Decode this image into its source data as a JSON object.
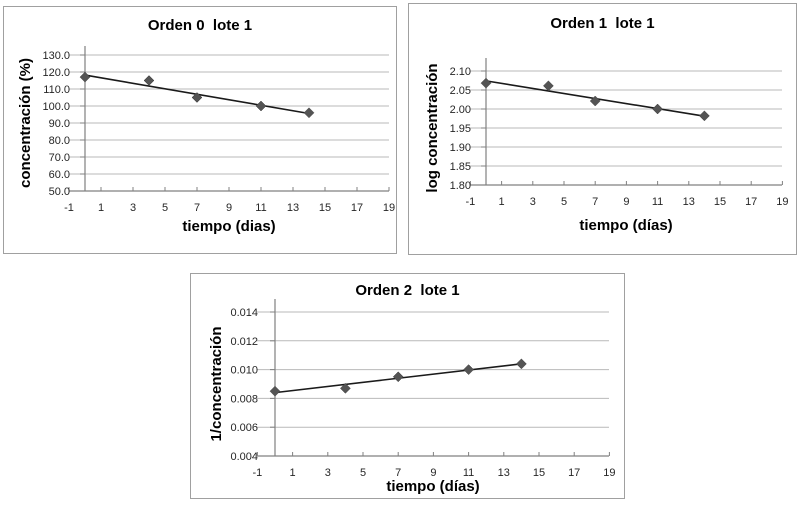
{
  "page": {
    "background": "#ffffff",
    "description_colors": {
      "marker": "#545454",
      "trend_line": "#1a1a1a",
      "gridline": "#b9b9b9",
      "axis_line": "#808080",
      "tick_label": "#262626",
      "chart_border": "#a0a0a0",
      "title_text": "#000000"
    }
  },
  "chart_data": [
    {
      "type": "scatter",
      "title": "Orden 0  lote 1",
      "xlabel": "tiempo (dias)",
      "ylabel": "concentración (%)",
      "x": [
        0,
        4,
        7,
        11,
        14
      ],
      "y": [
        117,
        115,
        105,
        100,
        96
      ],
      "trendline": {
        "x1": 0,
        "y1": 118.2,
        "x2": 14,
        "y2": 95.6
      },
      "xticks": [
        -1,
        1,
        3,
        5,
        7,
        9,
        11,
        13,
        15,
        17,
        19
      ],
      "ytick_values": [
        130,
        120,
        110,
        100,
        90,
        80,
        70,
        60,
        50
      ],
      "ytick_labels": [
        "130.0",
        "120.0",
        "110.0",
        "100.0",
        "90.0",
        "80.0",
        "70.0",
        "60.0",
        "50.0"
      ],
      "xlim": [
        -1,
        19
      ],
      "ylim": [
        50,
        130
      ],
      "grid": "horizontal",
      "legend": "none",
      "marker": "diamond"
    },
    {
      "type": "scatter",
      "title": "Orden 1  lote 1",
      "xlabel": "tiempo (días)",
      "ylabel": "log concentración",
      "x": [
        0,
        4,
        7,
        11,
        14
      ],
      "y": [
        2.068,
        2.061,
        2.021,
        2.0,
        1.982
      ],
      "trendline": {
        "x1": 0,
        "y1": 2.074,
        "x2": 14,
        "y2": 1.981
      },
      "xticks": [
        -1,
        1,
        3,
        5,
        7,
        9,
        11,
        13,
        15,
        17,
        19
      ],
      "ytick_values": [
        2.1,
        2.05,
        2.0,
        1.95,
        1.9,
        1.85,
        1.8
      ],
      "ytick_labels": [
        "2.10",
        "2.05",
        "2.00",
        "1.95",
        "1.90",
        "1.85",
        "1.80"
      ],
      "xlim": [
        -1,
        19
      ],
      "ylim": [
        1.8,
        2.1
      ],
      "grid": "horizontal",
      "legend": "none",
      "marker": "diamond"
    },
    {
      "type": "scatter",
      "title": "Orden 2  lote 1",
      "xlabel": "tiempo (días)",
      "ylabel": "1/concentración",
      "x": [
        0,
        4,
        7,
        11,
        14
      ],
      "y": [
        0.0085,
        0.0087,
        0.0095,
        0.01,
        0.0104
      ],
      "trendline": {
        "x1": 0,
        "y1": 0.0084,
        "x2": 14,
        "y2": 0.0104
      },
      "xticks": [
        -1,
        1,
        3,
        5,
        7,
        9,
        11,
        13,
        15,
        17,
        19
      ],
      "ytick_values": [
        0.014,
        0.012,
        0.01,
        0.008,
        0.006,
        0.004
      ],
      "ytick_labels": [
        "0.014",
        "0.012",
        "0.010",
        "0.008",
        "0.006",
        "0.004"
      ],
      "xlim": [
        -1,
        19
      ],
      "ylim": [
        0.004,
        0.014
      ],
      "grid": "horizontal",
      "legend": "none",
      "marker": "diamond"
    }
  ]
}
